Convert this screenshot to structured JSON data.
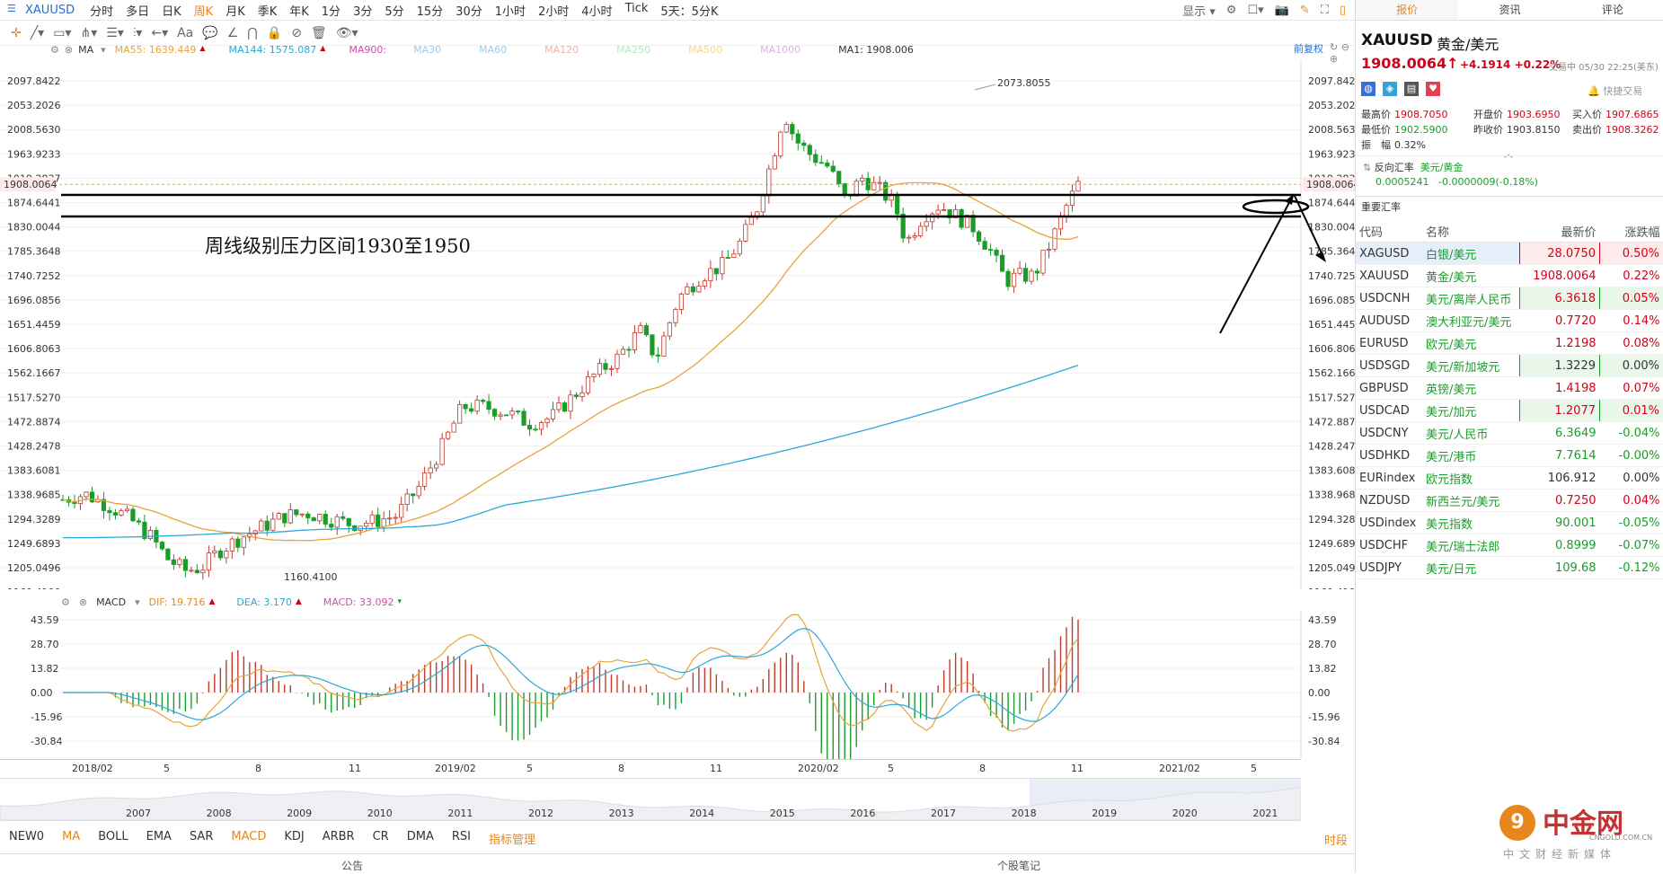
{
  "toolbar": {
    "symbol": "XAUUSD",
    "timeframes": [
      "分时",
      "多日",
      "日K",
      "周K",
      "月K",
      "季K",
      "年K",
      "1分",
      "3分",
      "5分",
      "15分",
      "30分",
      "1小时",
      "2小时",
      "4小时",
      "Tick",
      "5天：5分K"
    ],
    "active_timeframe": "周K",
    "display_label": "显示"
  },
  "drawbar": {
    "aa_label": "Aa"
  },
  "ma_legend": {
    "ma_label": "MA",
    "items": [
      {
        "text": "MA55: 1639.449",
        "color": "#e8a33a"
      },
      {
        "text": "MA144: 1575.087",
        "color": "#2aa8d8"
      },
      {
        "text": "MA900:",
        "color": "#c94fb0"
      },
      {
        "text": "MA30",
        "color": "#9ecbe8"
      },
      {
        "text": "MA60",
        "color": "#9ecbe8"
      },
      {
        "text": "MA120",
        "color": "#f2b3b3"
      },
      {
        "text": "MA250",
        "color": "#b3e6c6"
      },
      {
        "text": "MA500",
        "color": "#f6d58a"
      },
      {
        "text": "MA1000",
        "color": "#dcb3e6"
      },
      {
        "text": "MA1: 1908.006",
        "color": "#333333"
      }
    ],
    "adjust_label": "前复权"
  },
  "y_axis": {
    "labels": [
      "2097.8422",
      "2053.2026",
      "2008.5630",
      "1963.9233",
      "1919.2837",
      "1874.6441",
      "1830.0044",
      "1785.3648",
      "1740.7252",
      "1696.0856",
      "1651.4459",
      "1606.8063",
      "1562.1667",
      "1517.5270",
      "1472.8874",
      "1428.2478",
      "1383.6081",
      "1338.9685",
      "1294.3289",
      "1249.6893",
      "1205.0496",
      "1160.4100"
    ],
    "current_price": "1908.0064",
    "high_marker": "2073.8055",
    "low_marker": "1160.4100"
  },
  "annotation": {
    "text": "周线级别压力区间1930至1950"
  },
  "macd": {
    "label": "MACD",
    "dif": "DIF: 19.716",
    "dea": "DEA: 3.170",
    "macd": "MACD: 33.092",
    "y_labels": [
      "43.59",
      "28.70",
      "13.82",
      "0.00",
      "-15.96",
      "-30.84"
    ]
  },
  "x_axis": {
    "labels": [
      "2018/02",
      "5",
      "8",
      "11",
      "2019/02",
      "5",
      "8",
      "11",
      "2020/02",
      "5",
      "8",
      "11",
      "2021/02",
      "5"
    ]
  },
  "navigator": {
    "years": [
      "2007",
      "2008",
      "2009",
      "2010",
      "2011",
      "2012",
      "2013",
      "2014",
      "2015",
      "2016",
      "2017",
      "2018",
      "2019",
      "2020",
      "2021"
    ]
  },
  "indicators": {
    "items": [
      "NEW0",
      "MA",
      "BOLL",
      "EMA",
      "SAR",
      "MACD",
      "KDJ",
      "ARBR",
      "CR",
      "DMA",
      "RSI",
      "指标管理"
    ],
    "right_label": "时段"
  },
  "bottom": {
    "left": "公告",
    "right": "个股笔记"
  },
  "right_panel": {
    "tabs": [
      "报价",
      "资讯",
      "评论"
    ],
    "symbol": "XAUUSD",
    "name": "黄金/美元",
    "price": "1908.0064",
    "change": "+4.1914",
    "change_pct": "+0.22%",
    "status": "交易中 05/30 22:25(美东)",
    "quick_trade": "快捷交易",
    "stats": [
      {
        "label": "最高价",
        "value": "1908.7050"
      },
      {
        "label": "开盘价",
        "value": "1903.6950"
      },
      {
        "label": "买入价",
        "value": "1907.6865"
      },
      {
        "label": "最低价",
        "value": "1902.5900"
      },
      {
        "label": "昨收价",
        "value": "1903.8150"
      },
      {
        "label": "卖出价",
        "value": "1908.3262"
      },
      {
        "label": "振　幅",
        "value": "0.32%"
      }
    ],
    "reverse": {
      "label": "反向汇率",
      "pair": "美元/黄金",
      "value": "0.0005241",
      "change": "-0.0000009(-0.18%)"
    },
    "important_label": "重要汇率",
    "table_headers": [
      "代码",
      "名称",
      "最新价",
      "涨跌幅"
    ],
    "rows": [
      {
        "code": "XAGUSD",
        "name": "白银/美元",
        "price": "28.0750",
        "pct": "0.50%",
        "dir": "up",
        "box": "red",
        "selected": true
      },
      {
        "code": "XAUUSD",
        "name": "黄金/美元",
        "price": "1908.0064",
        "pct": "0.22%",
        "dir": "up",
        "box": "",
        "selected": false
      },
      {
        "code": "USDCNH",
        "name": "美元/离岸人民币",
        "price": "6.3618",
        "pct": "0.05%",
        "dir": "up",
        "box": "green",
        "selected": false
      },
      {
        "code": "AUDUSD",
        "name": "澳大利亚元/美元",
        "price": "0.7720",
        "pct": "0.14%",
        "dir": "up",
        "box": "",
        "selected": false
      },
      {
        "code": "EURUSD",
        "name": "欧元/美元",
        "price": "1.2198",
        "pct": "0.08%",
        "dir": "up",
        "box": "",
        "selected": false
      },
      {
        "code": "USDSGD",
        "name": "美元/新加坡元",
        "price": "1.3229",
        "pct": "0.00%",
        "dir": "flat",
        "box": "green",
        "selected": false
      },
      {
        "code": "GBPUSD",
        "name": "英镑/美元",
        "price": "1.4198",
        "pct": "0.07%",
        "dir": "up",
        "box": "",
        "selected": false
      },
      {
        "code": "USDCAD",
        "name": "美元/加元",
        "price": "1.2077",
        "pct": "0.01%",
        "dir": "up",
        "box": "green",
        "selected": false
      },
      {
        "code": "USDCNY",
        "name": "美元/人民币",
        "price": "6.3649",
        "pct": "-0.04%",
        "dir": "down",
        "box": "",
        "selected": false
      },
      {
        "code": "USDHKD",
        "name": "美元/港币",
        "price": "7.7614",
        "pct": "-0.00%",
        "dir": "down",
        "box": "",
        "selected": false
      },
      {
        "code": "EURindex",
        "name": "欧元指数",
        "price": "106.912",
        "pct": "0.00%",
        "dir": "flat",
        "box": "",
        "selected": false
      },
      {
        "code": "NZDUSD",
        "name": "新西兰元/美元",
        "price": "0.7250",
        "pct": "0.04%",
        "dir": "up",
        "box": "",
        "selected": false
      },
      {
        "code": "USDindex",
        "name": "美元指数",
        "price": "90.001",
        "pct": "-0.05%",
        "dir": "down",
        "box": "",
        "selected": false
      },
      {
        "code": "USDCHF",
        "name": "美元/瑞士法郎",
        "price": "0.8999",
        "pct": "-0.07%",
        "dir": "down",
        "box": "",
        "selected": false
      },
      {
        "code": "USDJPY",
        "name": "美元/日元",
        "price": "109.68",
        "pct": "-0.12%",
        "dir": "down",
        "box": "",
        "selected": false
      }
    ]
  },
  "watermark": {
    "brand": "中金网",
    "site": "CNGOLD.COM.CN",
    "slogan": "中文财经新媒体"
  }
}
